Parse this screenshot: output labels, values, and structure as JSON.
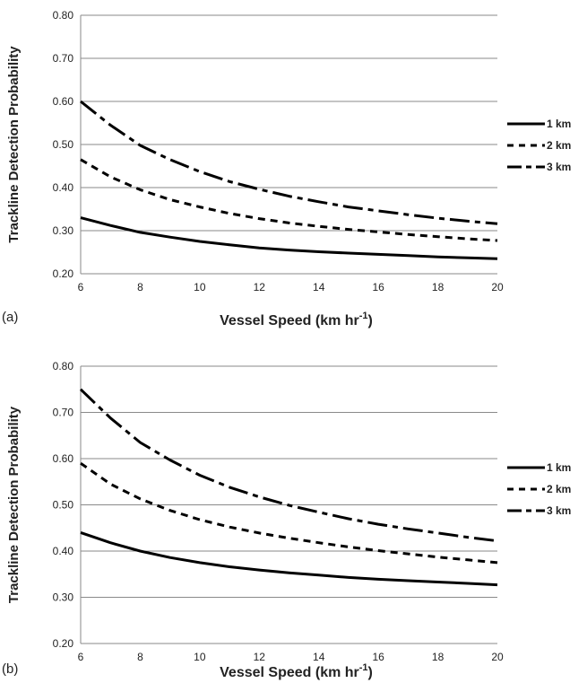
{
  "chart_data": [
    {
      "type": "line",
      "panel_label": "(a)",
      "ylabel": "Trackline Detection Probability",
      "xlabel_main": "Vessel Speed (km hr",
      "xlabel_sup": "-1",
      "xlabel_close": ")",
      "xlim": [
        6,
        20
      ],
      "ylim": [
        0.2,
        0.8
      ],
      "xticks": [
        6,
        8,
        10,
        12,
        14,
        16,
        18,
        20
      ],
      "xtick_labels": [
        "6",
        "8",
        "10",
        "12",
        "14",
        "16",
        "18",
        "20"
      ],
      "yticks": [
        0.2,
        0.3,
        0.4,
        0.5,
        0.6,
        0.7,
        0.8
      ],
      "ytick_labels": [
        "0.20",
        "0.30",
        "0.40",
        "0.50",
        "0.60",
        "0.70",
        "0.80"
      ],
      "grid": "horizontal",
      "legend_position": "right",
      "x": [
        6,
        7,
        8,
        9,
        10,
        11,
        12,
        13,
        14,
        15,
        16,
        17,
        18,
        19,
        20
      ],
      "series": [
        {
          "name": "1 km",
          "style": "solid",
          "values": [
            0.33,
            0.312,
            0.296,
            0.285,
            0.275,
            0.267,
            0.26,
            0.255,
            0.251,
            0.248,
            0.245,
            0.242,
            0.239,
            0.237,
            0.235
          ]
        },
        {
          "name": "2 km",
          "style": "dotted",
          "values": [
            0.465,
            0.425,
            0.395,
            0.372,
            0.355,
            0.34,
            0.328,
            0.318,
            0.31,
            0.303,
            0.297,
            0.291,
            0.286,
            0.281,
            0.277
          ]
        },
        {
          "name": "3 km",
          "style": "dashed",
          "values": [
            0.6,
            0.545,
            0.498,
            0.465,
            0.437,
            0.414,
            0.396,
            0.38,
            0.367,
            0.355,
            0.346,
            0.337,
            0.329,
            0.322,
            0.316
          ]
        }
      ]
    },
    {
      "type": "line",
      "panel_label": "(b)",
      "ylabel": "Trackline Detection Probability",
      "xlabel_main": "Vessel Speed (km hr",
      "xlabel_sup": "-1",
      "xlabel_close": ")",
      "xlim": [
        6,
        20
      ],
      "ylim": [
        0.2,
        0.8
      ],
      "xticks": [
        6,
        8,
        10,
        12,
        14,
        16,
        18,
        20
      ],
      "xtick_labels": [
        "6",
        "8",
        "10",
        "12",
        "14",
        "16",
        "18",
        "20"
      ],
      "yticks": [
        0.2,
        0.3,
        0.4,
        0.5,
        0.6,
        0.7,
        0.8
      ],
      "ytick_labels": [
        "0.20",
        "0.30",
        "0.40",
        "0.50",
        "0.60",
        "0.70",
        "0.80"
      ],
      "grid": "horizontal",
      "legend_position": "right",
      "x": [
        6,
        7,
        8,
        9,
        10,
        11,
        12,
        13,
        14,
        15,
        16,
        17,
        18,
        19,
        20
      ],
      "series": [
        {
          "name": "1 km",
          "style": "solid",
          "values": [
            0.44,
            0.418,
            0.4,
            0.386,
            0.375,
            0.366,
            0.359,
            0.353,
            0.348,
            0.343,
            0.339,
            0.336,
            0.333,
            0.33,
            0.327
          ]
        },
        {
          "name": "2 km",
          "style": "dotted",
          "values": [
            0.59,
            0.545,
            0.513,
            0.488,
            0.468,
            0.452,
            0.439,
            0.428,
            0.418,
            0.409,
            0.401,
            0.394,
            0.387,
            0.381,
            0.375
          ]
        },
        {
          "name": "3 km",
          "style": "dashed",
          "values": [
            0.75,
            0.688,
            0.635,
            0.597,
            0.564,
            0.538,
            0.517,
            0.499,
            0.484,
            0.47,
            0.458,
            0.448,
            0.439,
            0.43,
            0.422
          ]
        }
      ]
    }
  ],
  "colors": {
    "line": "#000000",
    "grid": "#8a8a8a",
    "axis": "#8a8a8a"
  }
}
